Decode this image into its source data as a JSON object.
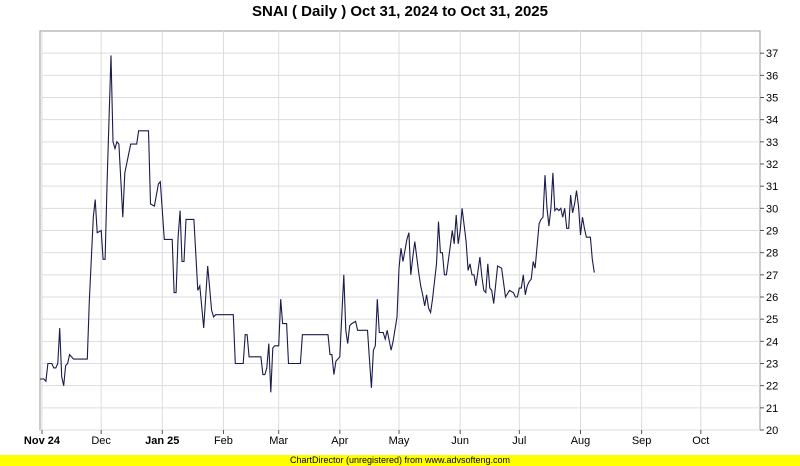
{
  "footer_text": "ChartDirector (unregistered) from www.advsofteng.com",
  "chart_data": {
    "type": "line",
    "title": "SNAI ( Daily ) Oct 31, 2024 to Oct 31, 2025",
    "xlabel": "",
    "ylabel": "",
    "x_range": [
      "2024-10-31",
      "2025-10-31"
    ],
    "ylim": [
      20,
      38
    ],
    "y_ticks": [
      20,
      21,
      22,
      23,
      24,
      25,
      26,
      27,
      28,
      29,
      30,
      31,
      32,
      33,
      34,
      35,
      36,
      37
    ],
    "x_ticks": [
      {
        "date": "2024-11-01",
        "label": "Nov 24",
        "bold": true
      },
      {
        "date": "2024-12-01",
        "label": "Dec",
        "bold": false
      },
      {
        "date": "2025-01-01",
        "label": "Jan 25",
        "bold": true
      },
      {
        "date": "2025-02-01",
        "label": "Feb",
        "bold": false
      },
      {
        "date": "2025-03-01",
        "label": "Mar",
        "bold": false
      },
      {
        "date": "2025-04-01",
        "label": "Apr",
        "bold": false
      },
      {
        "date": "2025-05-01",
        "label": "May",
        "bold": false
      },
      {
        "date": "2025-06-01",
        "label": "Jun",
        "bold": false
      },
      {
        "date": "2025-07-01",
        "label": "Jul",
        "bold": false
      },
      {
        "date": "2025-08-01",
        "label": "Aug",
        "bold": false
      },
      {
        "date": "2025-09-01",
        "label": "Sep",
        "bold": false
      },
      {
        "date": "2025-10-01",
        "label": "Oct",
        "bold": false
      }
    ],
    "grid": true,
    "y_axis_side": "right",
    "line_color": "#1a1a4d",
    "series": [
      {
        "points": [
          [
            "2024-10-31",
            22.3
          ],
          [
            "2024-11-02",
            22.3
          ],
          [
            "2024-11-03",
            22.2
          ],
          [
            "2024-11-04",
            23.0
          ],
          [
            "2024-11-06",
            23.0
          ],
          [
            "2024-11-07",
            22.8
          ],
          [
            "2024-11-08",
            22.8
          ],
          [
            "2024-11-09",
            23.0
          ],
          [
            "2024-11-10",
            24.6
          ],
          [
            "2024-11-11",
            22.4
          ],
          [
            "2024-11-12",
            22.0
          ],
          [
            "2024-11-13",
            22.9
          ],
          [
            "2024-11-14",
            23.0
          ],
          [
            "2024-11-15",
            23.4
          ],
          [
            "2024-11-17",
            23.2
          ],
          [
            "2024-11-24",
            23.2
          ],
          [
            "2024-11-25",
            25.8
          ],
          [
            "2024-11-27",
            29.6
          ],
          [
            "2024-11-28",
            30.4
          ],
          [
            "2024-11-29",
            28.9
          ],
          [
            "2024-12-01",
            29.0
          ],
          [
            "2024-12-02",
            27.7
          ],
          [
            "2024-12-03",
            27.7
          ],
          [
            "2024-12-04",
            31.2
          ],
          [
            "2024-12-06",
            36.9
          ],
          [
            "2024-12-07",
            33.0
          ],
          [
            "2024-12-08",
            32.7
          ],
          [
            "2024-12-09",
            33.0
          ],
          [
            "2024-12-10",
            32.9
          ],
          [
            "2024-12-12",
            29.6
          ],
          [
            "2024-12-13",
            31.6
          ],
          [
            "2024-12-16",
            32.9
          ],
          [
            "2024-12-19",
            32.9
          ],
          [
            "2024-12-20",
            33.5
          ],
          [
            "2024-12-25",
            33.5
          ],
          [
            "2024-12-26",
            30.2
          ],
          [
            "2024-12-28",
            30.1
          ],
          [
            "2024-12-30",
            31.1
          ],
          [
            "2024-12-31",
            31.2
          ],
          [
            "2025-01-02",
            28.6
          ],
          [
            "2025-01-06",
            28.6
          ],
          [
            "2025-01-07",
            26.2
          ],
          [
            "2025-01-08",
            26.2
          ],
          [
            "2025-01-09",
            28.7
          ],
          [
            "2025-01-10",
            29.9
          ],
          [
            "2025-01-11",
            27.6
          ],
          [
            "2025-01-12",
            27.6
          ],
          [
            "2025-01-13",
            29.5
          ],
          [
            "2025-01-17",
            29.5
          ],
          [
            "2025-01-19",
            26.3
          ],
          [
            "2025-01-20",
            26.5
          ],
          [
            "2025-01-22",
            24.6
          ],
          [
            "2025-01-24",
            27.4
          ],
          [
            "2025-01-26",
            25.4
          ],
          [
            "2025-01-27",
            25.1
          ],
          [
            "2025-01-28",
            25.2
          ],
          [
            "2025-02-06",
            25.2
          ],
          [
            "2025-02-07",
            23.0
          ],
          [
            "2025-02-11",
            23.0
          ],
          [
            "2025-02-12",
            24.3
          ],
          [
            "2025-02-13",
            24.3
          ],
          [
            "2025-02-14",
            23.3
          ],
          [
            "2025-02-20",
            23.3
          ],
          [
            "2025-02-21",
            22.5
          ],
          [
            "2025-02-22",
            22.5
          ],
          [
            "2025-02-23",
            22.8
          ],
          [
            "2025-02-24",
            23.9
          ],
          [
            "2025-02-25",
            21.7
          ],
          [
            "2025-02-26",
            23.7
          ],
          [
            "2025-02-27",
            23.8
          ],
          [
            "2025-03-01",
            23.8
          ],
          [
            "2025-03-02",
            25.9
          ],
          [
            "2025-03-03",
            24.8
          ],
          [
            "2025-03-05",
            24.8
          ],
          [
            "2025-03-06",
            23.0
          ],
          [
            "2025-03-12",
            23.0
          ],
          [
            "2025-03-13",
            24.3
          ],
          [
            "2025-03-26",
            24.3
          ],
          [
            "2025-03-27",
            23.4
          ],
          [
            "2025-03-28",
            23.4
          ],
          [
            "2025-03-29",
            22.5
          ],
          [
            "2025-03-30",
            23.1
          ],
          [
            "2025-04-01",
            23.3
          ],
          [
            "2025-04-03",
            27.0
          ],
          [
            "2025-04-04",
            24.5
          ],
          [
            "2025-04-05",
            23.9
          ],
          [
            "2025-04-06",
            24.7
          ],
          [
            "2025-04-07",
            24.8
          ],
          [
            "2025-04-09",
            24.9
          ],
          [
            "2025-04-10",
            24.5
          ],
          [
            "2025-04-15",
            24.5
          ],
          [
            "2025-04-17",
            21.9
          ],
          [
            "2025-04-18",
            23.6
          ],
          [
            "2025-04-19",
            23.8
          ],
          [
            "2025-04-20",
            25.9
          ],
          [
            "2025-04-21",
            24.4
          ],
          [
            "2025-04-23",
            24.4
          ],
          [
            "2025-04-24",
            24.1
          ],
          [
            "2025-04-25",
            24.5
          ],
          [
            "2025-04-27",
            23.6
          ],
          [
            "2025-04-28",
            24.0
          ],
          [
            "2025-04-30",
            25.1
          ],
          [
            "2025-05-01",
            27.3
          ],
          [
            "2025-05-02",
            28.2
          ],
          [
            "2025-05-03",
            27.6
          ],
          [
            "2025-05-05",
            28.6
          ],
          [
            "2025-05-06",
            28.9
          ],
          [
            "2025-05-07",
            27.0
          ],
          [
            "2025-05-08",
            27.8
          ],
          [
            "2025-05-09",
            28.5
          ],
          [
            "2025-05-11",
            27.1
          ],
          [
            "2025-05-12",
            26.5
          ],
          [
            "2025-05-13",
            26.1
          ],
          [
            "2025-05-14",
            25.6
          ],
          [
            "2025-05-15",
            26.1
          ],
          [
            "2025-05-16",
            25.5
          ],
          [
            "2025-05-17",
            25.3
          ],
          [
            "2025-05-18",
            25.9
          ],
          [
            "2025-05-20",
            27.5
          ],
          [
            "2025-05-21",
            29.4
          ],
          [
            "2025-05-22",
            28.0
          ],
          [
            "2025-05-23",
            28.0
          ],
          [
            "2025-05-24",
            27.0
          ],
          [
            "2025-05-25",
            27.0
          ],
          [
            "2025-05-27",
            28.3
          ],
          [
            "2025-05-28",
            29.0
          ],
          [
            "2025-05-29",
            28.4
          ],
          [
            "2025-05-30",
            29.7
          ],
          [
            "2025-05-31",
            28.4
          ],
          [
            "2025-06-01",
            29.0
          ],
          [
            "2025-06-02",
            30.0
          ],
          [
            "2025-06-04",
            28.5
          ],
          [
            "2025-06-05",
            27.2
          ],
          [
            "2025-06-06",
            27.5
          ],
          [
            "2025-06-07",
            27.0
          ],
          [
            "2025-06-08",
            27.0
          ],
          [
            "2025-06-09",
            26.5
          ],
          [
            "2025-06-11",
            27.8
          ],
          [
            "2025-06-12",
            26.9
          ],
          [
            "2025-06-13",
            26.3
          ],
          [
            "2025-06-14",
            26.2
          ],
          [
            "2025-06-15",
            27.5
          ],
          [
            "2025-06-16",
            26.4
          ],
          [
            "2025-06-17",
            26.3
          ],
          [
            "2025-06-18",
            25.7
          ],
          [
            "2025-06-20",
            27.4
          ],
          [
            "2025-06-22",
            27.3
          ],
          [
            "2025-06-24",
            26.0
          ],
          [
            "2025-06-26",
            26.3
          ],
          [
            "2025-06-28",
            26.2
          ],
          [
            "2025-06-29",
            26.0
          ],
          [
            "2025-06-30",
            26.0
          ],
          [
            "2025-07-01",
            26.4
          ],
          [
            "2025-07-02",
            26.4
          ],
          [
            "2025-07-03",
            27.0
          ],
          [
            "2025-07-04",
            26.1
          ],
          [
            "2025-07-05",
            26.5
          ],
          [
            "2025-07-06",
            26.7
          ],
          [
            "2025-07-07",
            26.8
          ],
          [
            "2025-07-08",
            27.6
          ],
          [
            "2025-07-09",
            27.3
          ],
          [
            "2025-07-10",
            28.3
          ],
          [
            "2025-07-11",
            29.3
          ],
          [
            "2025-07-12",
            29.5
          ],
          [
            "2025-07-13",
            29.6
          ],
          [
            "2025-07-14",
            31.5
          ],
          [
            "2025-07-15",
            30.0
          ],
          [
            "2025-07-16",
            29.2
          ],
          [
            "2025-07-17",
            30.0
          ],
          [
            "2025-07-18",
            31.6
          ],
          [
            "2025-07-19",
            29.9
          ],
          [
            "2025-07-20",
            30.0
          ],
          [
            "2025-07-21",
            29.9
          ],
          [
            "2025-07-22",
            30.0
          ],
          [
            "2025-07-23",
            29.6
          ],
          [
            "2025-07-24",
            30.0
          ],
          [
            "2025-07-25",
            29.1
          ],
          [
            "2025-07-26",
            29.1
          ],
          [
            "2025-07-27",
            30.6
          ],
          [
            "2025-07-28",
            29.8
          ],
          [
            "2025-07-29",
            30.2
          ],
          [
            "2025-07-30",
            30.8
          ],
          [
            "2025-07-31",
            30.1
          ],
          [
            "2025-08-01",
            28.8
          ],
          [
            "2025-08-02",
            29.6
          ],
          [
            "2025-08-03",
            29.1
          ],
          [
            "2025-08-04",
            28.7
          ],
          [
            "2025-08-05",
            28.7
          ],
          [
            "2025-08-06",
            28.7
          ],
          [
            "2025-08-07",
            27.7
          ],
          [
            "2025-08-08",
            27.1
          ]
        ]
      }
    ]
  }
}
